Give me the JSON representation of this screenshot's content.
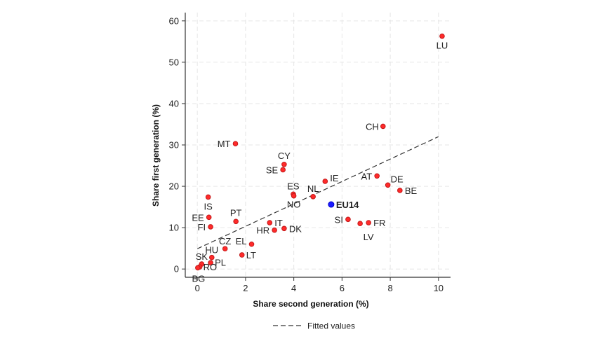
{
  "chart_data": {
    "type": "scatter",
    "title": "",
    "xlabel": "Share second generation (%)",
    "ylabel": "Share first generation (%)",
    "xlim": [
      -0.5,
      10.5
    ],
    "ylim": [
      -2,
      62
    ],
    "xticks": [
      "0",
      "2",
      "4",
      "6",
      "8",
      "10"
    ],
    "yticks": [
      "0",
      "10",
      "20",
      "30",
      "40",
      "50",
      "60"
    ],
    "grid": true,
    "colors": {
      "point": "#ff2a2a",
      "point_edge": "#c21a1a",
      "highlight": "#1a1aff",
      "fit": "#333333",
      "grid": "#e6e6e6"
    },
    "points": [
      {
        "label": "LU",
        "x": 10.15,
        "y": 56.3
      },
      {
        "label": "CH",
        "x": 7.7,
        "y": 34.5
      },
      {
        "label": "MT",
        "x": 1.58,
        "y": 30.3
      },
      {
        "label": "CY",
        "x": 3.6,
        "y": 25.3
      },
      {
        "label": "SE",
        "x": 3.55,
        "y": 24.0
      },
      {
        "label": "AT",
        "x": 7.45,
        "y": 22.5
      },
      {
        "label": "IE",
        "x": 5.3,
        "y": 21.2
      },
      {
        "label": "DE",
        "x": 7.9,
        "y": 20.3
      },
      {
        "label": "BE",
        "x": 8.4,
        "y": 19.0
      },
      {
        "label": "ES",
        "x": 3.98,
        "y": 18.1
      },
      {
        "label": "NO",
        "x": 4.0,
        "y": 17.7
      },
      {
        "label": "NL",
        "x": 4.8,
        "y": 17.5
      },
      {
        "label": "IS",
        "x": 0.45,
        "y": 17.4
      },
      {
        "label": "EU14",
        "x": 5.55,
        "y": 15.6,
        "highlight": true
      },
      {
        "label": "EE",
        "x": 0.48,
        "y": 12.5
      },
      {
        "label": "SI",
        "x": 6.25,
        "y": 12.0
      },
      {
        "label": "PT",
        "x": 1.6,
        "y": 11.5
      },
      {
        "label": "IT",
        "x": 3.0,
        "y": 11.2
      },
      {
        "label": "FR",
        "x": 7.1,
        "y": 11.2
      },
      {
        "label": "LV",
        "x": 6.75,
        "y": 11.0
      },
      {
        "label": "FI",
        "x": 0.55,
        "y": 10.2
      },
      {
        "label": "DK",
        "x": 3.6,
        "y": 9.8
      },
      {
        "label": "HR",
        "x": 3.2,
        "y": 9.4
      },
      {
        "label": "EL",
        "x": 2.25,
        "y": 6.0
      },
      {
        "label": "CZ",
        "x": 1.15,
        "y": 4.9
      },
      {
        "label": "LT",
        "x": 1.85,
        "y": 3.4
      },
      {
        "label": "HU",
        "x": 0.6,
        "y": 2.8
      },
      {
        "label": "PL",
        "x": 0.55,
        "y": 1.5
      },
      {
        "label": "SK",
        "x": 0.18,
        "y": 1.2
      },
      {
        "label": "RO",
        "x": 0.1,
        "y": 0.5
      },
      {
        "label": "BG",
        "x": 0.02,
        "y": 0.3
      }
    ],
    "fit_line": {
      "name": "Fitted values",
      "x": [
        0,
        10
      ],
      "y": [
        4.9,
        32.0
      ]
    },
    "legend": {
      "placement": "bottom",
      "entries": [
        "Fitted values"
      ]
    }
  }
}
